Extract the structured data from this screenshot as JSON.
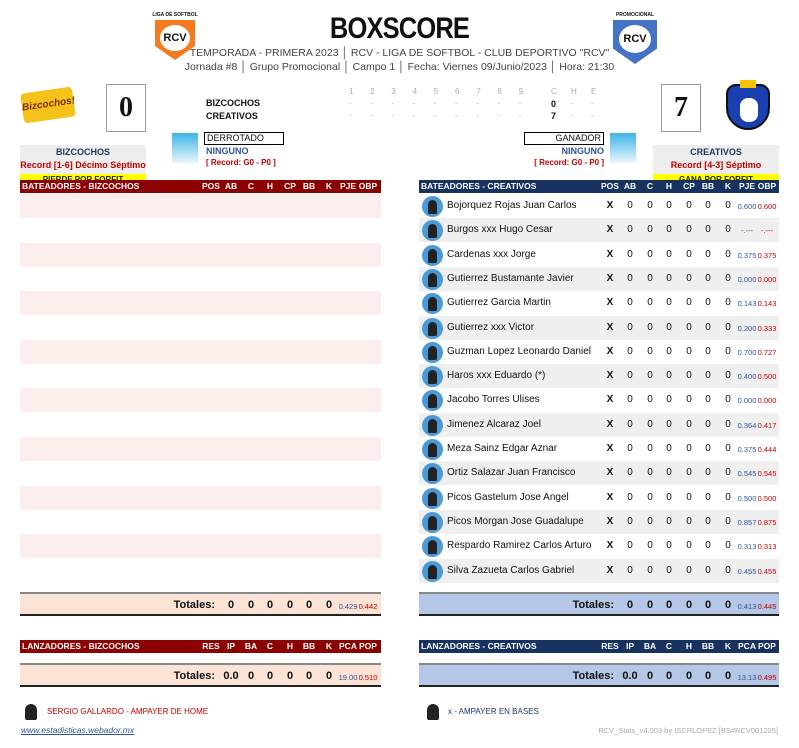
{
  "header": {
    "title": "BOXSCORE",
    "line1": "TEMPORADA - PRIMERA 2023 │ RCV - LIGA DE SOFTBOL - CLUB DEPORTIVO \"RCV\"",
    "line2": "Jornada #8 │ Grupo Promocional │ Campo 1 │ Fecha: Viernes 09/Junio/2023 │ Hora: 21:30",
    "logo_left_caption": "LIGA DE SOFTBOL",
    "logo_right_caption": "PROMOCIONAL",
    "logo_text": "RCV"
  },
  "linescore": {
    "innings": [
      "1",
      "2",
      "3",
      "4",
      "5",
      "6",
      "7",
      "8",
      "9"
    ],
    "totals_headers": [
      "C",
      "H",
      "E"
    ],
    "teams": [
      {
        "name": "BIZCOCHOS",
        "C": "0",
        "H": "-",
        "E": "-"
      },
      {
        "name": "CREATIVOS",
        "C": "7",
        "H": "-",
        "E": "-"
      }
    ],
    "dash": "-"
  },
  "home": {
    "logo_text": "Bizcochos!",
    "score": "0",
    "name": "BIZCOCHOS",
    "record": "Record  [1-6] Décimo Séptimo",
    "result": "PIERDE POR FORFIT",
    "pitcher_label": "DERROTADO",
    "pitcher": "NINGUNO",
    "pitcher_record": "[ Record: G0 - P0 ]"
  },
  "away": {
    "score": "7",
    "name": "CREATIVOS",
    "record": "Record  [4-3] Séptimo",
    "result": "GANA POR FORFIT",
    "pitcher_label": "GANADOR",
    "pitcher": "NINGUNO",
    "pitcher_record": "[ Record: G0 - P0 ]"
  },
  "batting_columns": [
    "POS",
    "AB",
    "C",
    "H",
    "CP",
    "BB",
    "K",
    "PJE",
    "OBP"
  ],
  "batting_left": {
    "title": "BATEADORES - BIZCOCHOS",
    "totals": {
      "label": "Totales:",
      "values": [
        "0",
        "0",
        "0",
        "0",
        "0",
        "0"
      ],
      "pje": "0.429",
      "obp": "0.442"
    }
  },
  "batting_right": {
    "title": "BATEADORES - CREATIVOS",
    "players": [
      {
        "name": "Bojorquez Rojas Juan Carlos",
        "pos": "X",
        "pje": "0.600",
        "obp": "0.600"
      },
      {
        "name": "Burgos xxx Hugo Cesar",
        "pos": "X",
        "pje": "-.---",
        "obp": "-.---"
      },
      {
        "name": "Cardenas xxx Jorge",
        "pos": "X",
        "pje": "0.375",
        "obp": "0.375"
      },
      {
        "name": "Gutierrez Bustamante Javier",
        "pos": "X",
        "pje": "0.000",
        "obp": "0.000"
      },
      {
        "name": "Gutierrez Garcia Martin",
        "pos": "X",
        "pje": "0.143",
        "obp": "0.143"
      },
      {
        "name": "Gutierrez xxx Victor",
        "pos": "X",
        "pje": "0.200",
        "obp": "0.333"
      },
      {
        "name": "Guzman Lopez Leonardo Daniel",
        "pos": "X",
        "pje": "0.700",
        "obp": "0.727"
      },
      {
        "name": "Haros xxx Eduardo (*)",
        "pos": "X",
        "pje": "0.400",
        "obp": "0.500"
      },
      {
        "name": "Jacobo Torres Ulises",
        "pos": "X",
        "pje": "0.000",
        "obp": "0.000"
      },
      {
        "name": "Jimenez Alcaraz Joel",
        "pos": "X",
        "pje": "0.364",
        "obp": "0.417"
      },
      {
        "name": "Meza Sainz Edgar Aznar",
        "pos": "X",
        "pje": "0.375",
        "obp": "0.444"
      },
      {
        "name": "Ortiz Salazar Juan Francisco",
        "pos": "X",
        "pje": "0.545",
        "obp": "0.545"
      },
      {
        "name": "Picos Gastelum Jose Angel",
        "pos": "X",
        "pje": "0.500",
        "obp": "0.500"
      },
      {
        "name": "Picos Morgan Jose Guadalupe",
        "pos": "X",
        "pje": "0.857",
        "obp": "0.875"
      },
      {
        "name": "Respardo Ramirez Carlos Arturo",
        "pos": "X",
        "pje": "0.313",
        "obp": "0.313"
      },
      {
        "name": "Silva Zazueta Carlos Gabriel",
        "pos": "X",
        "pje": "0.455",
        "obp": "0.455"
      }
    ],
    "stat_zero": "0",
    "totals": {
      "label": "Totales:",
      "values": [
        "0",
        "0",
        "0",
        "0",
        "0",
        "0"
      ],
      "pje": "0.413",
      "obp": "0.445"
    }
  },
  "pitching_columns": [
    "RES",
    "IP",
    "BA",
    "C",
    "H",
    "BB",
    "K",
    "PCA",
    "POP"
  ],
  "pitching_left": {
    "title": "LANZADORES - BIZCOCHOS",
    "totals": {
      "label": "Totales:",
      "ip": "0.0",
      "values": [
        "0",
        "0",
        "0",
        "0",
        "0"
      ],
      "pca": "19.00",
      "pop": "0.510"
    }
  },
  "pitching_right": {
    "title": "LANZADORES - CREATIVOS",
    "totals": {
      "label": "Totales:",
      "ip": "0.0",
      "values": [
        "0",
        "0",
        "0",
        "0",
        "0"
      ],
      "pca": "13.13",
      "pop": "0.495"
    }
  },
  "footer": {
    "umpire_home": "SERGIO GALLARDO - AMPAYER DE HOME",
    "umpire_bases": "x - AMPAYER EN BASES",
    "website": "www.estadisticas.webador.mx",
    "version": "RCV_Stats_v4.003 by ISCRLOPEZ [BS#RCV001205]"
  },
  "colors": {
    "home": "#8b0000",
    "away": "#17325f",
    "home_tint": "#fbe3d6",
    "away_tint": "#b4c7e7"
  }
}
